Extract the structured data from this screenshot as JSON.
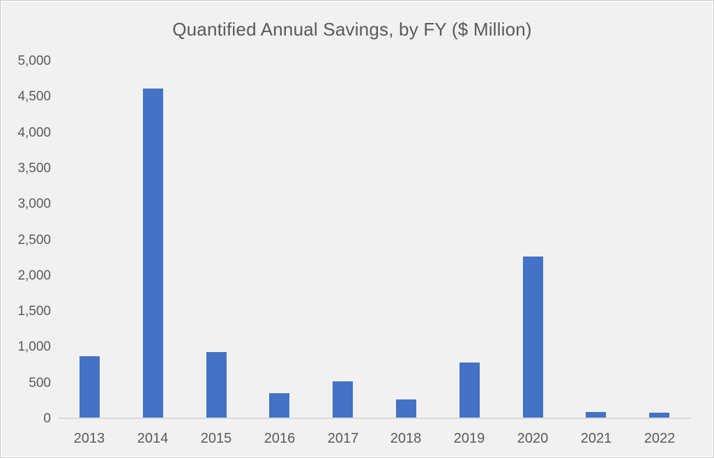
{
  "chart": {
    "colors": {
      "background": "#f1f1f2",
      "bar": "#4472c4",
      "text": "#595959",
      "axis_line": "#d9d9d9"
    }
  },
  "chart_data": {
    "type": "bar",
    "title": "Quantified Annual Savings, by FY ($ Million)",
    "categories": [
      "2013",
      "2014",
      "2015",
      "2016",
      "2017",
      "2018",
      "2019",
      "2020",
      "2021",
      "2022"
    ],
    "values": [
      860,
      4600,
      920,
      340,
      510,
      250,
      770,
      2250,
      75,
      65
    ],
    "xlabel": "",
    "ylabel": "",
    "ylim": [
      0,
      5000
    ],
    "yticks": [
      0,
      500,
      1000,
      1500,
      2000,
      2500,
      3000,
      3500,
      4000,
      4500,
      5000
    ],
    "ytick_labels": [
      "0",
      "500",
      "1,000",
      "1,500",
      "2,000",
      "2,500",
      "3,000",
      "3,500",
      "4,000",
      "4,500",
      "5,000"
    ],
    "grid": false,
    "legend": false
  }
}
